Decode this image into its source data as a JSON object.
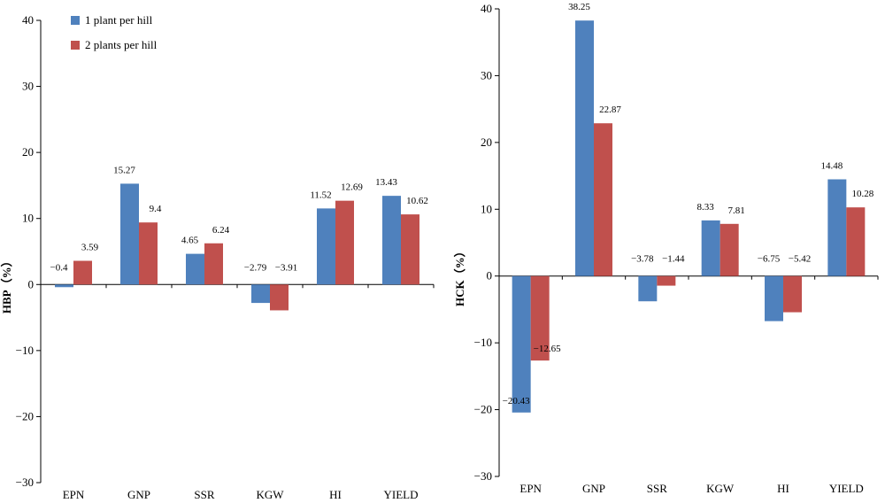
{
  "chart_data": [
    {
      "type": "bar",
      "ylabel": "HBP（%）",
      "ylim": [
        -30,
        40
      ],
      "yticks": [
        "−30",
        "−20",
        "−10",
        "0",
        "10",
        "20",
        "30",
        "40"
      ],
      "categories": [
        "EPN",
        "GNP",
        "SSR",
        "KGW",
        "HI",
        "YIELD"
      ],
      "legend_position": "top-left",
      "series": [
        {
          "name": "1 plant per hill",
          "color": "#4f81bd",
          "values": [
            -0.4,
            15.27,
            4.65,
            -2.79,
            11.52,
            13.43
          ],
          "labels": [
            "−0.4",
            "15.27",
            "4.65",
            "−2.79",
            "11.52",
            "13.43"
          ]
        },
        {
          "name": "2 plants per hill",
          "color": "#c0504d",
          "values": [
            3.59,
            9.4,
            6.24,
            -3.91,
            12.69,
            10.62
          ],
          "labels": [
            "3.59",
            "9.4",
            "6.24",
            "−3.91",
            "12.69",
            "10.62"
          ]
        }
      ]
    },
    {
      "type": "bar",
      "ylabel": "HCK（%）",
      "ylim": [
        -30,
        40
      ],
      "yticks": [
        "−30",
        "−20",
        "−10",
        "0",
        "10",
        "20",
        "30",
        "40"
      ],
      "categories": [
        "EPN",
        "GNP",
        "SSR",
        "KGW",
        "HI",
        "YIELD"
      ],
      "series": [
        {
          "name": "1 plant per hill",
          "color": "#4f81bd",
          "values": [
            -20.43,
            38.25,
            -3.78,
            8.33,
            -6.75,
            14.48
          ],
          "labels": [
            "−20.43",
            "38.25",
            "−3.78",
            "8.33",
            "−6.75",
            "14.48"
          ]
        },
        {
          "name": "2 plants per hill",
          "color": "#c0504d",
          "values": [
            -12.65,
            22.87,
            -1.44,
            7.81,
            -5.42,
            10.28
          ],
          "labels": [
            "−12.65",
            "22.87",
            "−1.44",
            "7.81",
            "−5.42",
            "10.28"
          ]
        }
      ]
    }
  ]
}
